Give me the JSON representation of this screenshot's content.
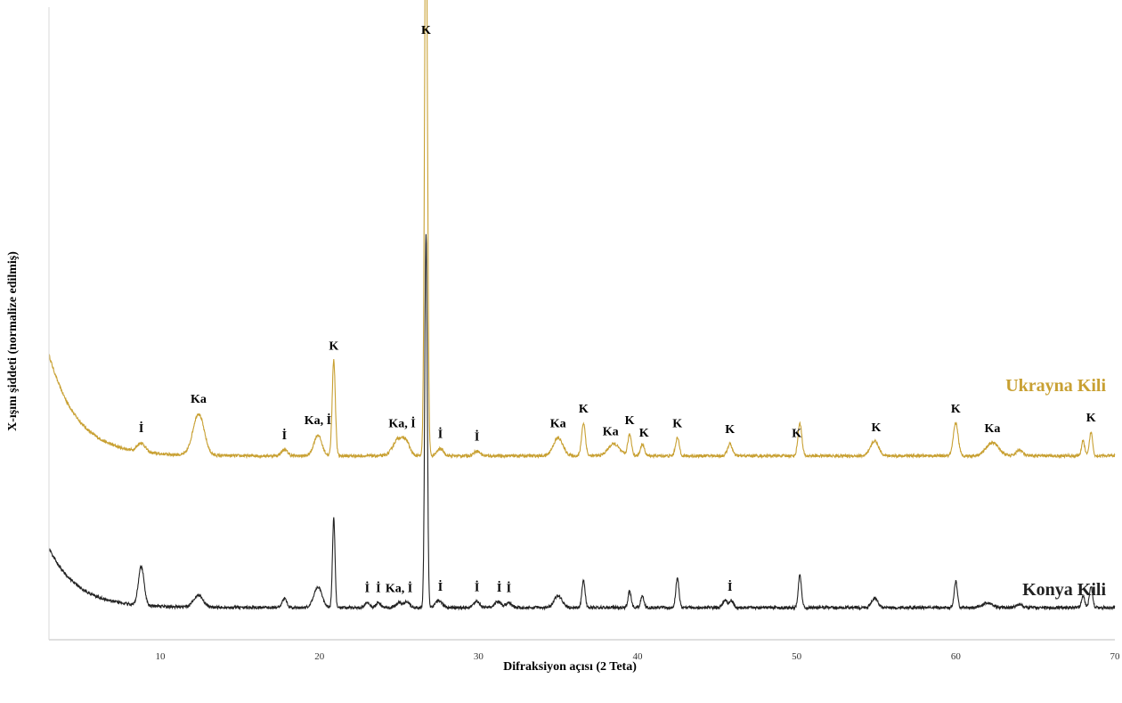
{
  "chart_data": {
    "type": "line",
    "xlabel": "Difraksiyon açısı (2 Teta)",
    "ylabel": "X-ışını şiddeti (normalize edilmiş)",
    "xlim": [
      3,
      70
    ],
    "xticks": [
      "10",
      "20",
      "30",
      "40",
      "50",
      "60",
      "70"
    ],
    "y_ticks_shown": false,
    "series": [
      {
        "name": "Ukrayna Kili",
        "color": "#c8a032",
        "baseline": 0.3,
        "start_hump": 0.17,
        "noise": 0.0025,
        "peaks": [
          [
            8.8,
            0.015,
            0.25
          ],
          [
            12.4,
            0.07,
            0.35
          ],
          [
            17.8,
            0.01,
            0.2
          ],
          [
            19.9,
            0.035,
            0.25
          ],
          [
            20.9,
            0.16,
            0.1
          ],
          [
            25.0,
            0.03,
            0.35
          ],
          [
            25.5,
            0.015,
            0.2
          ],
          [
            26.7,
            0.99,
            0.09
          ],
          [
            27.6,
            0.012,
            0.2
          ],
          [
            29.9,
            0.008,
            0.2
          ],
          [
            35.0,
            0.03,
            0.3
          ],
          [
            36.6,
            0.055,
            0.12
          ],
          [
            38.5,
            0.02,
            0.35
          ],
          [
            39.5,
            0.035,
            0.12
          ],
          [
            40.3,
            0.02,
            0.12
          ],
          [
            42.5,
            0.03,
            0.12
          ],
          [
            45.8,
            0.02,
            0.15
          ],
          [
            50.2,
            0.055,
            0.12
          ],
          [
            54.9,
            0.025,
            0.25
          ],
          [
            60.0,
            0.055,
            0.15
          ],
          [
            62.3,
            0.022,
            0.4
          ],
          [
            64.0,
            0.01,
            0.2
          ],
          [
            68.0,
            0.025,
            0.1
          ],
          [
            68.5,
            0.04,
            0.1
          ]
        ],
        "labels": [
          {
            "x": 8.8,
            "text": "İ"
          },
          {
            "x": 12.4,
            "text": "Ka"
          },
          {
            "x": 17.8,
            "text": "İ"
          },
          {
            "x": 19.9,
            "text": "Ka, İ"
          },
          {
            "x": 20.9,
            "text": "K"
          },
          {
            "x": 25.2,
            "text": "Ka, İ"
          },
          {
            "x": 26.7,
            "text": "K"
          },
          {
            "x": 27.6,
            "text": "İ"
          },
          {
            "x": 29.9,
            "text": "İ"
          },
          {
            "x": 35.0,
            "text": "Ka"
          },
          {
            "x": 36.6,
            "text": "K"
          },
          {
            "x": 38.3,
            "text": "Ka"
          },
          {
            "x": 39.5,
            "text": "K"
          },
          {
            "x": 40.4,
            "text": "K"
          },
          {
            "x": 42.5,
            "text": "K"
          },
          {
            "x": 45.8,
            "text": "K"
          },
          {
            "x": 50.0,
            "text": "K"
          },
          {
            "x": 55.0,
            "text": "K"
          },
          {
            "x": 60.0,
            "text": "K"
          },
          {
            "x": 62.3,
            "text": "Ka"
          },
          {
            "x": 68.5,
            "text": "K"
          }
        ]
      },
      {
        "name": "Konya Kili",
        "color": "#222222",
        "baseline": 0.045,
        "start_hump": 0.1,
        "noise": 0.0025,
        "peaks": [
          [
            8.8,
            0.065,
            0.18
          ],
          [
            12.4,
            0.02,
            0.3
          ],
          [
            17.8,
            0.015,
            0.15
          ],
          [
            19.9,
            0.035,
            0.25
          ],
          [
            20.9,
            0.15,
            0.08
          ],
          [
            23.0,
            0.008,
            0.15
          ],
          [
            23.7,
            0.008,
            0.15
          ],
          [
            25.0,
            0.008,
            0.2
          ],
          [
            25.5,
            0.01,
            0.15
          ],
          [
            26.7,
            0.63,
            0.08
          ],
          [
            27.5,
            0.012,
            0.2
          ],
          [
            29.9,
            0.01,
            0.2
          ],
          [
            31.2,
            0.01,
            0.2
          ],
          [
            31.9,
            0.008,
            0.2
          ],
          [
            35.0,
            0.02,
            0.25
          ],
          [
            36.6,
            0.045,
            0.1
          ],
          [
            39.5,
            0.028,
            0.1
          ],
          [
            40.3,
            0.02,
            0.1
          ],
          [
            42.5,
            0.05,
            0.1
          ],
          [
            45.5,
            0.012,
            0.15
          ],
          [
            45.9,
            0.012,
            0.12
          ],
          [
            50.2,
            0.055,
            0.1
          ],
          [
            54.9,
            0.015,
            0.2
          ],
          [
            60.0,
            0.045,
            0.1
          ],
          [
            62.0,
            0.008,
            0.3
          ],
          [
            64.0,
            0.005,
            0.2
          ],
          [
            68.0,
            0.02,
            0.1
          ],
          [
            68.5,
            0.035,
            0.1
          ]
        ],
        "labels": [
          {
            "x": 23.0,
            "text": "İ"
          },
          {
            "x": 23.7,
            "text": "İ"
          },
          {
            "x": 25.0,
            "text": "Ka, İ"
          },
          {
            "x": 27.6,
            "text": "İ"
          },
          {
            "x": 29.9,
            "text": "İ"
          },
          {
            "x": 31.3,
            "text": "İ"
          },
          {
            "x": 31.9,
            "text": "İ"
          },
          {
            "x": 45.8,
            "text": "İ"
          }
        ]
      }
    ]
  }
}
